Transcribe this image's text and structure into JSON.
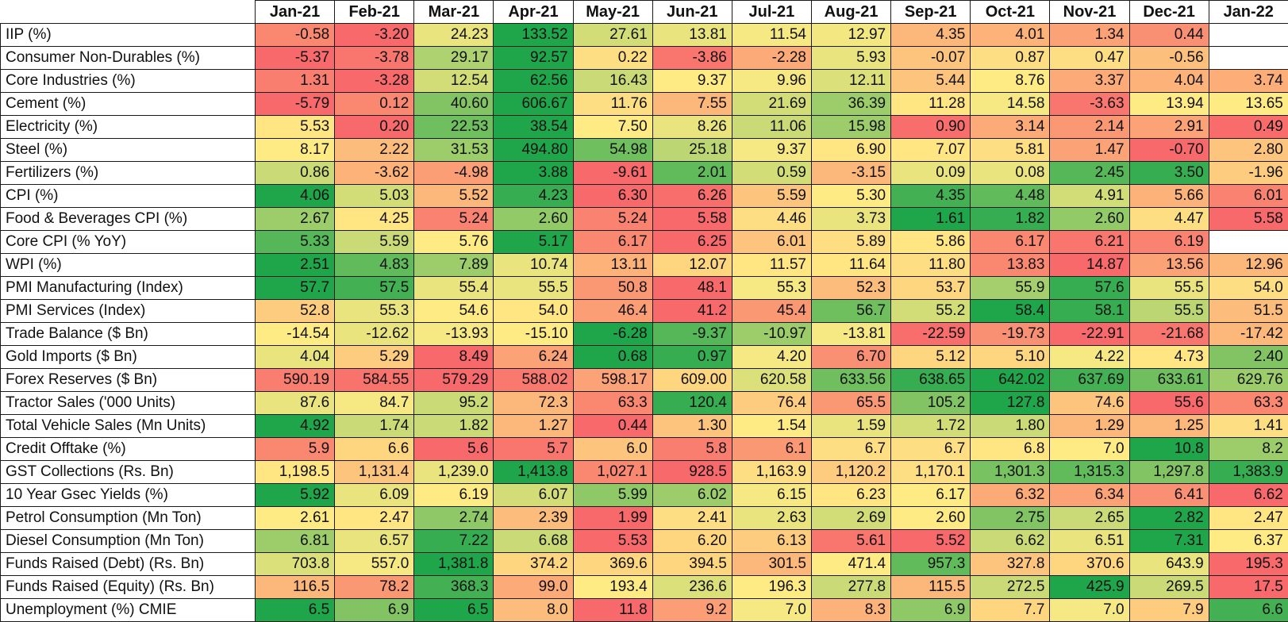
{
  "colors": {
    "low_end": "#f8696b",
    "mid": "#ffeb84",
    "high_end": "#1fa64a"
  },
  "chart_data": {
    "type": "heatmap",
    "columns": [
      "Jan-21",
      "Feb-21",
      "Mar-21",
      "Apr-21",
      "May-21",
      "Jun-21",
      "Jul-21",
      "Aug-21",
      "Sep-21",
      "Oct-21",
      "Nov-21",
      "Dec-21",
      "Jan-22"
    ],
    "rows": [
      {
        "label": "IIP (%)",
        "display": [
          "-0.58",
          "-3.20",
          "24.23",
          "133.52",
          "27.61",
          "13.81",
          "11.54",
          "12.97",
          "4.35",
          "4.01",
          "1.34",
          "0.44",
          ""
        ],
        "shade": [
          0.12,
          0.0,
          0.55,
          1.0,
          0.6,
          0.55,
          0.52,
          0.53,
          0.3,
          0.28,
          0.22,
          0.15,
          null
        ]
      },
      {
        "label": "Consumer Non-Durables (%)",
        "display": [
          "-5.37",
          "-3.78",
          "29.17",
          "92.57",
          "0.22",
          "-3.86",
          "-2.28",
          "5.93",
          "-0.07",
          "0.87",
          "0.47",
          "-0.56",
          ""
        ],
        "shade": [
          0.0,
          0.05,
          0.68,
          1.0,
          0.45,
          0.05,
          0.25,
          0.55,
          0.35,
          0.45,
          0.45,
          0.33,
          null
        ]
      },
      {
        "label": "Core Industries (%)",
        "display": [
          "1.31",
          "-3.28",
          "12.54",
          "62.56",
          "16.43",
          "9.37",
          "9.96",
          "12.11",
          "5.44",
          "8.76",
          "3.37",
          "4.04",
          "3.74"
        ],
        "shade": [
          0.08,
          0.0,
          0.6,
          1.0,
          0.62,
          0.5,
          0.52,
          0.58,
          0.35,
          0.5,
          0.25,
          0.28,
          0.26
        ]
      },
      {
        "label": "Cement (%)",
        "display": [
          "-5.79",
          "0.12",
          "40.60",
          "606.67",
          "11.76",
          "7.55",
          "21.69",
          "36.39",
          "11.28",
          "14.58",
          "-3.63",
          "13.94",
          "13.65"
        ],
        "shade": [
          0.0,
          0.12,
          0.78,
          1.0,
          0.45,
          0.3,
          0.6,
          0.72,
          0.48,
          0.52,
          0.05,
          0.5,
          0.5
        ]
      },
      {
        "label": "Electricity (%)",
        "display": [
          "5.53",
          "0.20",
          "22.53",
          "38.54",
          "7.50",
          "8.26",
          "11.06",
          "15.98",
          "0.90",
          "3.14",
          "2.14",
          "2.91",
          "0.49"
        ],
        "shade": [
          0.48,
          0.0,
          0.82,
          1.0,
          0.5,
          0.55,
          0.62,
          0.72,
          0.02,
          0.25,
          0.18,
          0.22,
          0.01
        ]
      },
      {
        "label": "Steel (%)",
        "display": [
          "8.17",
          "2.22",
          "31.53",
          "494.80",
          "54.98",
          "25.18",
          "9.37",
          "6.90",
          "7.07",
          "5.81",
          "1.47",
          "-0.70",
          "2.80"
        ],
        "shade": [
          0.5,
          0.32,
          0.72,
          1.0,
          0.82,
          0.65,
          0.52,
          0.48,
          0.48,
          0.45,
          0.22,
          0.0,
          0.35
        ]
      },
      {
        "label": "Fertilizers (%)",
        "display": [
          "0.86",
          "-3.62",
          "-4.98",
          "3.88",
          "-9.61",
          "2.01",
          "0.59",
          "-3.15",
          "0.09",
          "0.08",
          "2.45",
          "3.50",
          "-1.96"
        ],
        "shade": [
          0.62,
          0.28,
          0.2,
          1.0,
          0.0,
          0.85,
          0.6,
          0.3,
          0.55,
          0.55,
          0.88,
          0.95,
          0.38
        ]
      },
      {
        "label": "CPI (%)",
        "display": [
          "4.06",
          "5.03",
          "5.52",
          "4.23",
          "6.30",
          "6.26",
          "5.59",
          "5.30",
          "4.35",
          "4.48",
          "4.91",
          "5.66",
          "6.01"
        ],
        "shade": [
          1.0,
          0.6,
          0.3,
          0.95,
          0.0,
          0.02,
          0.35,
          0.5,
          0.92,
          0.85,
          0.6,
          0.28,
          0.1
        ]
      },
      {
        "label": "Food & Beverages CPI (%)",
        "display": [
          "2.67",
          "4.25",
          "5.24",
          "2.60",
          "5.24",
          "5.58",
          "4.46",
          "3.73",
          "1.61",
          "1.82",
          "2.60",
          "4.47",
          "5.58"
        ],
        "shade": [
          0.72,
          0.48,
          0.1,
          0.74,
          0.1,
          0.0,
          0.45,
          0.55,
          1.0,
          0.95,
          0.74,
          0.45,
          0.0
        ]
      },
      {
        "label": "Core CPI (% YoY)",
        "display": [
          "5.33",
          "5.59",
          "5.76",
          "5.17",
          "6.17",
          "6.25",
          "6.01",
          "5.89",
          "5.86",
          "6.17",
          "6.21",
          "6.19",
          ""
        ],
        "shade": [
          0.88,
          0.62,
          0.5,
          1.0,
          0.12,
          0.0,
          0.35,
          0.45,
          0.48,
          0.12,
          0.05,
          0.1,
          null
        ]
      },
      {
        "label": "WPI (%)",
        "display": [
          "2.51",
          "4.83",
          "7.89",
          "10.74",
          "13.11",
          "12.07",
          "11.57",
          "11.64",
          "11.80",
          "13.83",
          "14.87",
          "13.56",
          "12.96"
        ],
        "shade": [
          1.0,
          0.85,
          0.72,
          0.55,
          0.28,
          0.42,
          0.48,
          0.48,
          0.45,
          0.12,
          0.0,
          0.22,
          0.3
        ]
      },
      {
        "label": "PMI Manufacturing (Index)",
        "display": [
          "57.7",
          "57.5",
          "55.4",
          "55.5",
          "50.8",
          "48.1",
          "55.3",
          "52.3",
          "53.7",
          "55.9",
          "57.6",
          "55.5",
          "54.0"
        ],
        "shade": [
          1.0,
          0.92,
          0.55,
          0.55,
          0.18,
          0.0,
          0.52,
          0.32,
          0.42,
          0.7,
          0.95,
          0.55,
          0.45
        ]
      },
      {
        "label": "PMI Services (Index)",
        "display": [
          "52.8",
          "55.3",
          "54.6",
          "54.0",
          "46.4",
          "41.2",
          "45.4",
          "56.7",
          "55.2",
          "58.4",
          "58.1",
          "55.5",
          "51.5"
        ],
        "shade": [
          0.38,
          0.55,
          0.5,
          0.48,
          0.2,
          0.0,
          0.18,
          0.82,
          0.6,
          1.0,
          0.95,
          0.65,
          0.32
        ]
      },
      {
        "label": "Trade Balance ($ Bn)",
        "display": [
          "-14.54",
          "-12.62",
          "-13.93",
          "-15.10",
          "-6.28",
          "-9.37",
          "-10.97",
          "-13.81",
          "-22.59",
          "-19.73",
          "-22.91",
          "-21.68",
          "-17.42"
        ],
        "shade": [
          0.5,
          0.55,
          0.52,
          0.5,
          1.0,
          0.88,
          0.72,
          0.52,
          0.02,
          0.15,
          0.0,
          0.05,
          0.3
        ]
      },
      {
        "label": "Gold Imports ($ Bn)",
        "display": [
          "4.04",
          "5.29",
          "8.49",
          "6.24",
          "0.68",
          "0.97",
          "4.20",
          "6.70",
          "5.12",
          "5.10",
          "4.22",
          "4.73",
          "2.40"
        ],
        "shade": [
          0.55,
          0.38,
          0.0,
          0.22,
          1.0,
          0.95,
          0.52,
          0.15,
          0.42,
          0.42,
          0.52,
          0.48,
          0.78
        ]
      },
      {
        "label": "Forex Reserves ($ Bn)",
        "display": [
          "590.19",
          "584.55",
          "579.29",
          "588.02",
          "598.17",
          "609.00",
          "620.58",
          "633.56",
          "638.65",
          "642.02",
          "637.69",
          "633.61",
          "629.76"
        ],
        "shade": [
          0.08,
          0.04,
          0.0,
          0.06,
          0.22,
          0.42,
          0.58,
          0.82,
          0.95,
          1.0,
          0.92,
          0.82,
          0.72
        ]
      },
      {
        "label": "Tractor Sales ('000 Units)",
        "display": [
          "87.6",
          "84.7",
          "95.2",
          "72.3",
          "63.3",
          "120.4",
          "76.4",
          "65.5",
          "105.2",
          "127.8",
          "74.6",
          "55.6",
          "63.3"
        ],
        "shade": [
          0.55,
          0.52,
          0.62,
          0.3,
          0.12,
          0.95,
          0.38,
          0.18,
          0.78,
          1.0,
          0.35,
          0.0,
          0.12
        ]
      },
      {
        "label": "Total Vehicle Sales (Mn Units)",
        "display": [
          "4.92",
          "1.74",
          "1.82",
          "1.27",
          "0.44",
          "1.30",
          "1.54",
          "1.59",
          "1.72",
          "1.80",
          "1.29",
          "1.25",
          "1.41"
        ],
        "shade": [
          1.0,
          0.62,
          0.62,
          0.3,
          0.0,
          0.35,
          0.5,
          0.55,
          0.6,
          0.62,
          0.3,
          0.3,
          0.45
        ]
      },
      {
        "label": "Credit Offtake (%)",
        "display": [
          "5.9",
          "6.6",
          "5.6",
          "5.7",
          "6.0",
          "5.8",
          "6.1",
          "6.7",
          "6.7",
          "6.8",
          "7.0",
          "10.8",
          "8.2"
        ],
        "shade": [
          0.12,
          0.42,
          0.0,
          0.05,
          0.35,
          0.08,
          0.18,
          0.45,
          0.45,
          0.48,
          0.5,
          1.0,
          0.72
        ]
      },
      {
        "label": "GST Collections (Rs. Bn)",
        "display": [
          "1,198.5",
          "1,131.4",
          "1,239.0",
          "1,413.8",
          "1,027.1",
          "928.5",
          "1,163.9",
          "1,120.2",
          "1,170.1",
          "1,301.3",
          "1,315.3",
          "1,297.8",
          "1,383.9"
        ],
        "shade": [
          0.48,
          0.35,
          0.55,
          1.0,
          0.12,
          0.0,
          0.45,
          0.38,
          0.45,
          0.8,
          0.85,
          0.78,
          0.95
        ]
      },
      {
        "label": "10 Year Gsec Yields (%)",
        "display": [
          "5.92",
          "6.09",
          "6.19",
          "6.07",
          "5.99",
          "6.02",
          "6.15",
          "6.23",
          "6.17",
          "6.32",
          "6.34",
          "6.41",
          "6.62"
        ],
        "shade": [
          1.0,
          0.55,
          0.5,
          0.6,
          0.75,
          0.72,
          0.52,
          0.48,
          0.5,
          0.25,
          0.22,
          0.15,
          0.0
        ]
      },
      {
        "label": "Petrol Consumption (Mn Ton)",
        "display": [
          "2.61",
          "2.47",
          "2.74",
          "2.39",
          "1.99",
          "2.41",
          "2.63",
          "2.69",
          "2.60",
          "2.75",
          "2.65",
          "2.82",
          "2.47"
        ],
        "shade": [
          0.5,
          0.48,
          0.75,
          0.32,
          0.0,
          0.45,
          0.55,
          0.6,
          0.5,
          0.78,
          0.62,
          1.0,
          0.48
        ]
      },
      {
        "label": "Diesel Consumption (Mn Ton)",
        "display": [
          "6.81",
          "6.57",
          "7.22",
          "6.68",
          "5.53",
          "6.20",
          "6.13",
          "5.61",
          "5.52",
          "6.62",
          "6.51",
          "7.31",
          "6.37"
        ],
        "shade": [
          0.72,
          0.55,
          0.95,
          0.62,
          0.0,
          0.42,
          0.38,
          0.05,
          0.0,
          0.62,
          0.55,
          1.0,
          0.5
        ]
      },
      {
        "label": "Funds Raised (Debt) (Rs. Bn)",
        "display": [
          "703.8",
          "557.0",
          "1,381.8",
          "374.2",
          "369.6",
          "394.5",
          "301.5",
          "471.4",
          "957.3",
          "327.8",
          "370.6",
          "643.9",
          "195.3"
        ],
        "shade": [
          0.58,
          0.52,
          1.0,
          0.42,
          0.42,
          0.42,
          0.3,
          0.5,
          0.85,
          0.35,
          0.42,
          0.55,
          0.0
        ]
      },
      {
        "label": "Funds Raised (Equity) (Rs. Bn)",
        "display": [
          "116.5",
          "78.2",
          "368.3",
          "99.0",
          "193.4",
          "236.6",
          "196.3",
          "277.8",
          "115.5",
          "272.5",
          "425.9",
          "269.5",
          "17.5"
        ],
        "shade": [
          0.3,
          0.18,
          0.92,
          0.25,
          0.5,
          0.58,
          0.5,
          0.62,
          0.3,
          0.62,
          1.0,
          0.62,
          0.0
        ]
      },
      {
        "label": "Unemployment (%) CMIE",
        "display": [
          "6.5",
          "6.9",
          "6.5",
          "8.0",
          "11.8",
          "9.2",
          "7.0",
          "8.3",
          "6.9",
          "7.7",
          "7.0",
          "7.9",
          "6.6"
        ],
        "shade": [
          1.0,
          0.78,
          1.0,
          0.32,
          0.0,
          0.2,
          0.52,
          0.28,
          0.75,
          0.42,
          0.52,
          0.38,
          0.92
        ]
      }
    ]
  }
}
